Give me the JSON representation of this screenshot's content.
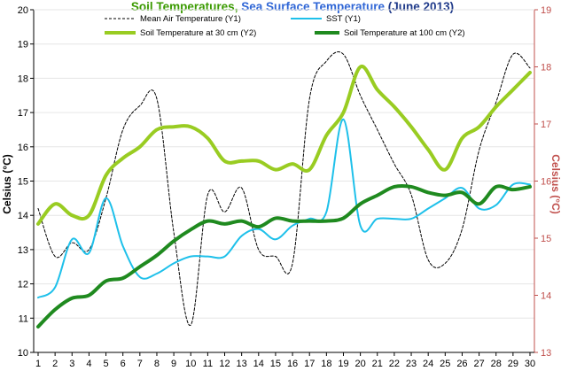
{
  "chart_data": {
    "type": "line",
    "title": {
      "part1": "Soil Temperatures",
      "sep": ", ",
      "part2": "Sea Surface Temperature",
      "part3": " (June 2013)"
    },
    "colors": {
      "title1": "#3a9a00",
      "title2": "#2f66d6",
      "title3": "#1f3a8a",
      "y_right": "#c0504d",
      "grid": "#e6e6e6"
    },
    "ylabel_left": "Celsius (°C)",
    "ylabel_right": "Celsius (°C)",
    "y_left": {
      "min": 10,
      "max": 20,
      "ticks": [
        10,
        11,
        12,
        13,
        14,
        15,
        16,
        17,
        18,
        19,
        20
      ]
    },
    "y_right": {
      "min": 13,
      "max": 19,
      "ticks": [
        13,
        14,
        15,
        16,
        17,
        18,
        19
      ]
    },
    "x": [
      1,
      2,
      3,
      4,
      5,
      6,
      7,
      8,
      9,
      10,
      11,
      12,
      13,
      14,
      15,
      16,
      17,
      18,
      19,
      20,
      21,
      22,
      23,
      24,
      25,
      26,
      27,
      28,
      29,
      30
    ],
    "grid": true,
    "legend_position": "top",
    "series": [
      {
        "name": "Mean Air Temperature (Y1)",
        "axis": "left",
        "color": "#000000",
        "dash": true,
        "width": 1,
        "values": [
          14.2,
          12.8,
          13.2,
          13.0,
          14.5,
          16.5,
          17.2,
          17.4,
          13.5,
          10.8,
          14.6,
          14.1,
          14.8,
          13.0,
          12.8,
          12.6,
          17.4,
          18.5,
          18.7,
          17.5,
          16.5,
          15.5,
          14.6,
          12.7,
          12.6,
          13.6,
          15.9,
          17.3,
          18.7,
          18.3
        ]
      },
      {
        "name": "SST (Y1)",
        "axis": "left",
        "color": "#1ec0ea",
        "dash": false,
        "width": 2,
        "values": [
          11.6,
          11.9,
          13.3,
          12.9,
          14.5,
          13.1,
          12.2,
          12.3,
          12.6,
          12.8,
          12.8,
          12.8,
          13.4,
          13.6,
          13.3,
          13.7,
          13.9,
          14.1,
          16.8,
          13.7,
          13.9,
          13.9,
          13.9,
          14.2,
          14.5,
          14.8,
          14.2,
          14.3,
          14.9,
          14.9
        ]
      },
      {
        "name": "Soil Temperature at 30 cm (Y2)",
        "axis": "right",
        "color": "#99cc22",
        "dash": false,
        "width": 4,
        "values": [
          15.25,
          15.6,
          15.4,
          15.4,
          16.1,
          16.4,
          16.6,
          16.9,
          16.95,
          16.95,
          16.75,
          16.35,
          16.35,
          16.35,
          16.2,
          16.3,
          16.2,
          16.8,
          17.2,
          18.0,
          17.6,
          17.3,
          16.95,
          16.55,
          16.2,
          16.75,
          16.95,
          17.3,
          17.6,
          17.9
        ]
      },
      {
        "name": "Soil Temperature at 100 cm (Y2)",
        "axis": "right",
        "color": "#1f8a1f",
        "dash": false,
        "width": 4,
        "values": [
          13.45,
          13.75,
          13.95,
          14.0,
          14.25,
          14.3,
          14.5,
          14.7,
          14.95,
          15.15,
          15.3,
          15.25,
          15.3,
          15.2,
          15.35,
          15.3,
          15.3,
          15.3,
          15.35,
          15.6,
          15.75,
          15.9,
          15.9,
          15.8,
          15.75,
          15.8,
          15.6,
          15.9,
          15.85,
          15.9
        ]
      }
    ]
  }
}
